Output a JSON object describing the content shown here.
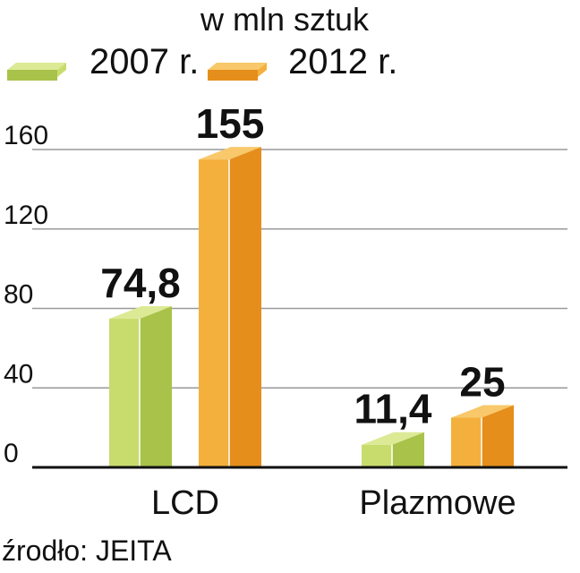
{
  "chart_data": {
    "type": "bar",
    "subtitle": "w mln sztuk",
    "categories": [
      "LCD",
      "Plazmowe"
    ],
    "series": [
      {
        "name": "2007 r.",
        "values": [
          74.8,
          11.4
        ],
        "labels": [
          "74,8",
          "11,4"
        ]
      },
      {
        "name": "2012 r.",
        "values": [
          155,
          25
        ],
        "labels": [
          "155",
          "25"
        ]
      }
    ],
    "yticks": [
      "0",
      "40",
      "80",
      "120",
      "160"
    ],
    "ytick_values": [
      0,
      40,
      80,
      120,
      160
    ],
    "ylim": [
      0,
      160
    ],
    "grid": true,
    "legend_position": "top-left",
    "source": "źrodło: JEITA"
  },
  "colors": {
    "series_2007": {
      "front": "#c8dc6e",
      "side": "#a9c24a",
      "top": "#dcea96"
    },
    "series_2012": {
      "front": "#f4b03c",
      "side": "#e58e1c",
      "top": "#f8c86a"
    },
    "grid": "#999999",
    "axis": "#111111"
  }
}
